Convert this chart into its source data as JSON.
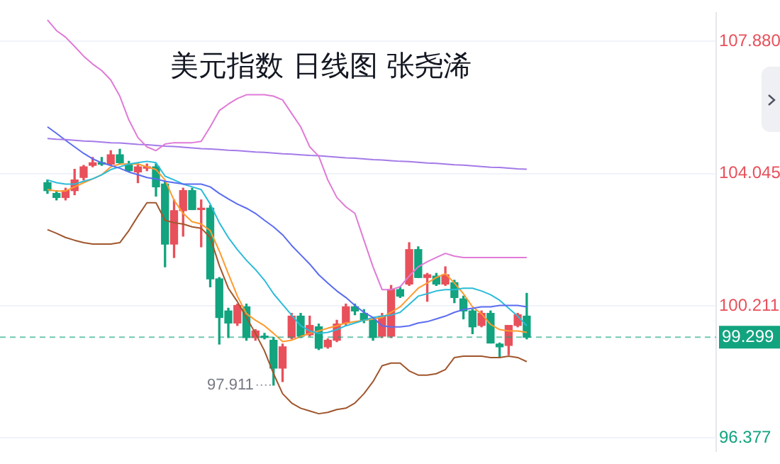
{
  "chart_data": {
    "type": "candlestick",
    "title": "美元指数 日线图 张尧浠",
    "categories": [
      null,
      null,
      null,
      null,
      null,
      null,
      null,
      null,
      null,
      null,
      null,
      null,
      null,
      null,
      null,
      null,
      null,
      null,
      null,
      null,
      null,
      null,
      null,
      null,
      null,
      null,
      null,
      null,
      null,
      null,
      null,
      null,
      null,
      null,
      null,
      null,
      null,
      null,
      null,
      null,
      null,
      null,
      null,
      null,
      null,
      null,
      null,
      null,
      null,
      null,
      null,
      null,
      null,
      null
    ],
    "ohlc": [
      [
        103.78,
        103.86,
        103.47,
        103.55
      ],
      [
        103.47,
        103.55,
        103.28,
        103.35
      ],
      [
        103.35,
        103.62,
        103.28,
        103.55
      ],
      [
        103.55,
        104.17,
        103.43,
        103.86
      ],
      [
        103.93,
        104.28,
        103.86,
        104.24
      ],
      [
        104.28,
        104.51,
        104.24,
        104.36
      ],
      [
        104.36,
        104.51,
        104.28,
        104.32
      ],
      [
        104.32,
        104.71,
        104.28,
        104.59
      ],
      [
        104.59,
        104.75,
        104.32,
        104.36
      ],
      [
        104.32,
        104.4,
        104.09,
        104.13
      ],
      [
        104.09,
        104.32,
        103.78,
        104.24
      ],
      [
        104.2,
        104.32,
        104.13,
        104.24
      ],
      [
        104.24,
        104.32,
        103.39,
        103.66
      ],
      [
        103.74,
        103.82,
        101.34,
        102.0
      ],
      [
        102.0,
        103.28,
        101.61,
        102.97
      ],
      [
        102.97,
        103.62,
        102.23,
        103.55
      ],
      [
        103.55,
        103.62,
        103.0,
        103.0
      ],
      [
        103.0,
        103.28,
        101.92,
        103.04
      ],
      [
        103.04,
        103.12,
        100.76,
        100.99
      ],
      [
        100.99,
        101.03,
        99.1,
        99.87
      ],
      [
        100.06,
        100.14,
        99.29,
        99.71
      ],
      [
        99.71,
        100.26,
        99.64,
        100.22
      ],
      [
        100.18,
        100.26,
        99.21,
        99.29
      ],
      [
        99.29,
        99.52,
        99.21,
        99.48
      ],
      [
        99.33,
        99.41,
        99.25,
        99.29
      ],
      [
        99.21,
        99.29,
        97.911,
        98.4
      ],
      [
        98.4,
        99.1,
        98.01,
        99.02
      ],
      [
        99.29,
        99.99,
        99.25,
        99.91
      ],
      [
        99.91,
        99.99,
        99.29,
        99.33
      ],
      [
        99.37,
        99.91,
        99.33,
        99.64
      ],
      [
        99.6,
        99.68,
        98.94,
        98.98
      ],
      [
        99.02,
        99.25,
        98.98,
        99.21
      ],
      [
        99.21,
        99.79,
        99.17,
        99.68
      ],
      [
        99.71,
        100.26,
        99.64,
        100.18
      ],
      [
        100.18,
        100.26,
        99.95,
        100.06
      ],
      [
        99.99,
        100.1,
        99.72,
        99.79
      ],
      [
        99.79,
        99.87,
        99.21,
        99.29
      ],
      [
        99.33,
        99.99,
        99.29,
        99.91
      ],
      [
        99.33,
        100.8,
        99.29,
        100.68
      ],
      [
        100.68,
        100.76,
        100.45,
        100.49
      ],
      [
        100.84,
        102.04,
        100.8,
        101.84
      ],
      [
        101.84,
        101.92,
        101.03,
        101.03
      ],
      [
        101.03,
        101.15,
        100.34,
        101.11
      ],
      [
        101.07,
        101.15,
        100.8,
        100.84
      ],
      [
        100.84,
        101.34,
        100.8,
        101.11
      ],
      [
        100.88,
        100.95,
        100.3,
        100.45
      ],
      [
        100.41,
        100.49,
        99.83,
        100.06
      ],
      [
        100.06,
        100.1,
        99.4,
        99.6
      ],
      [
        99.64,
        100.06,
        99.6,
        99.99
      ],
      [
        99.99,
        100.06,
        99.13,
        99.13
      ],
      [
        99.1,
        99.13,
        98.71,
        99.02
      ],
      [
        99.06,
        99.64,
        98.79,
        99.64
      ],
      [
        99.64,
        99.99,
        99.6,
        99.95
      ],
      [
        99.91,
        100.57,
        99.25,
        99.299
      ]
    ],
    "colors": [
      "#12a37f",
      "#12a37f",
      "#e8505b",
      "#e8505b",
      "#e8505b",
      "#e8505b",
      "#12a37f",
      "#e8505b",
      "#12a37f",
      "#12a37f",
      "#e8505b",
      "#e8505b",
      "#12a37f",
      "#12a37f",
      "#e8505b",
      "#e8505b",
      "#12a37f",
      "#e8505b",
      "#12a37f",
      "#12a37f",
      "#12a37f",
      "#e8505b",
      "#12a37f",
      "#e8505b",
      "#12a37f",
      "#12a37f",
      "#e8505b",
      "#e8505b",
      "#12a37f",
      "#e8505b",
      "#12a37f",
      "#e8505b",
      "#e8505b",
      "#e8505b",
      "#12a37f",
      "#12a37f",
      "#12a37f",
      "#e8505b",
      "#e8505b",
      "#12a37f",
      "#e8505b",
      "#12a37f",
      "#e8505b",
      "#12a37f",
      "#e8505b",
      "#12a37f",
      "#12a37f",
      "#12a37f",
      "#e8505b",
      "#12a37f",
      "#12a37f",
      "#e8505b",
      "#e8505b",
      "#12a37f"
    ],
    "series": [
      {
        "type": "line",
        "color": "#e07ad6",
        "values": [
          108.5,
          108.19,
          108.0,
          107.73,
          107.45,
          107.22,
          107.03,
          106.76,
          106.29,
          105.6,
          105.09,
          104.82,
          104.71,
          104.9,
          104.94,
          104.94,
          104.94,
          104.98,
          105.4,
          105.87,
          106.06,
          106.22,
          106.33,
          106.33,
          106.33,
          106.29,
          106.18,
          105.79,
          105.4,
          104.82,
          104.55,
          103.86,
          103.35,
          103.08,
          102.89,
          102.11,
          101.34,
          100.68,
          100.68,
          100.76,
          101.07,
          101.34,
          101.49,
          101.61,
          101.73,
          101.65,
          101.61,
          101.61,
          101.61,
          101.61,
          101.61,
          101.61,
          101.61,
          101.61
        ]
      },
      {
        "type": "line",
        "color": "#a0562d",
        "values": [
          102.42,
          102.31,
          102.19,
          102.11,
          102.04,
          102.0,
          102.0,
          102.0,
          102.04,
          102.39,
          102.81,
          103.2,
          103.2,
          102.69,
          102.62,
          102.58,
          102.5,
          102.46,
          102.19,
          101.38,
          100.72,
          100.33,
          99.87,
          99.41,
          98.9,
          98.24,
          97.66,
          97.39,
          97.24,
          97.16,
          97.08,
          97.12,
          97.2,
          97.24,
          97.39,
          97.66,
          98.01,
          98.47,
          98.55,
          98.55,
          98.32,
          98.2,
          98.2,
          98.24,
          98.36,
          98.71,
          98.75,
          98.75,
          98.75,
          98.71,
          98.71,
          98.75,
          98.71,
          98.59
        ]
      },
      {
        "type": "line",
        "color": "#a47ae8",
        "values": [
          105.06,
          105.04,
          105.03,
          105.01,
          104.99,
          104.98,
          104.96,
          104.94,
          104.93,
          104.91,
          104.89,
          104.88,
          104.86,
          104.84,
          104.83,
          104.81,
          104.79,
          104.77,
          104.76,
          104.74,
          104.72,
          104.71,
          104.69,
          104.67,
          104.66,
          104.64,
          104.62,
          104.61,
          104.59,
          104.57,
          104.56,
          104.54,
          104.52,
          104.5,
          104.49,
          104.47,
          104.45,
          104.44,
          104.42,
          104.4,
          104.39,
          104.37,
          104.35,
          104.34,
          104.32,
          104.3,
          104.29,
          104.27,
          104.25,
          104.23,
          104.22,
          104.2,
          104.18,
          104.17
        ]
      },
      {
        "type": "line",
        "color": "#5b6cf0",
        "values": [
          105.4,
          105.21,
          105.01,
          104.82,
          104.63,
          104.47,
          104.36,
          104.28,
          104.2,
          104.09,
          104.01,
          103.93,
          103.89,
          103.82,
          103.78,
          103.74,
          103.74,
          103.74,
          103.66,
          103.47,
          103.31,
          103.16,
          103.04,
          102.89,
          102.69,
          102.5,
          102.27,
          101.96,
          101.69,
          101.42,
          101.11,
          100.87,
          100.64,
          100.45,
          100.22,
          100.02,
          99.87,
          99.63,
          99.6,
          99.6,
          99.63,
          99.71,
          99.75,
          99.83,
          99.91,
          100.02,
          100.1,
          100.14,
          100.18,
          100.18,
          100.22,
          100.22,
          100.22,
          100.18
        ]
      },
      {
        "type": "line",
        "color": "#2bbcd8",
        "values": [
          103.86,
          103.78,
          103.74,
          103.74,
          103.82,
          103.89,
          104.01,
          104.16,
          104.24,
          104.32,
          104.36,
          104.4,
          104.36,
          103.97,
          103.86,
          103.74,
          103.66,
          103.58,
          103.16,
          102.62,
          102.19,
          101.84,
          101.53,
          101.26,
          100.95,
          100.56,
          100.25,
          99.94,
          99.63,
          99.48,
          99.41,
          99.44,
          99.52,
          99.63,
          99.71,
          99.79,
          99.87,
          99.91,
          99.94,
          100.02,
          100.25,
          100.49,
          100.56,
          100.64,
          100.68,
          100.68,
          100.72,
          100.72,
          100.64,
          100.53,
          100.37,
          100.14,
          99.91,
          99.63
        ]
      },
      {
        "type": "line",
        "color": "#ff9a2e",
        "values": [
          103.58,
          103.54,
          103.54,
          103.66,
          103.78,
          103.89,
          104.01,
          104.24,
          104.32,
          104.32,
          104.32,
          104.24,
          104.16,
          103.86,
          103.27,
          102.89,
          102.65,
          102.58,
          102.39,
          101.8,
          101.14,
          100.49,
          99.98,
          99.79,
          99.63,
          99.41,
          99.17,
          99.21,
          99.32,
          99.41,
          99.48,
          99.56,
          99.63,
          99.71,
          99.75,
          99.79,
          99.83,
          99.87,
          100.02,
          100.18,
          100.45,
          100.72,
          100.87,
          101.03,
          101.14,
          100.87,
          100.56,
          100.18,
          99.98,
          99.67,
          99.52,
          99.48,
          99.48,
          99.44
        ]
      }
    ],
    "ylim": [
      96.0,
      108.7
    ],
    "yticks": [
      96.377,
      100.211,
      104.045,
      {
        "value": 107.88,
        "label": "107.880"
      }
    ],
    "ref_lines": [
      {
        "axis": "y",
        "value": 99.299,
        "label": "99.299",
        "color": "#12a37f",
        "line_style": "dashed"
      }
    ],
    "annotations": [
      "97.911"
    ],
    "grid": "y",
    "legend": false,
    "marker": "none"
  }
}
